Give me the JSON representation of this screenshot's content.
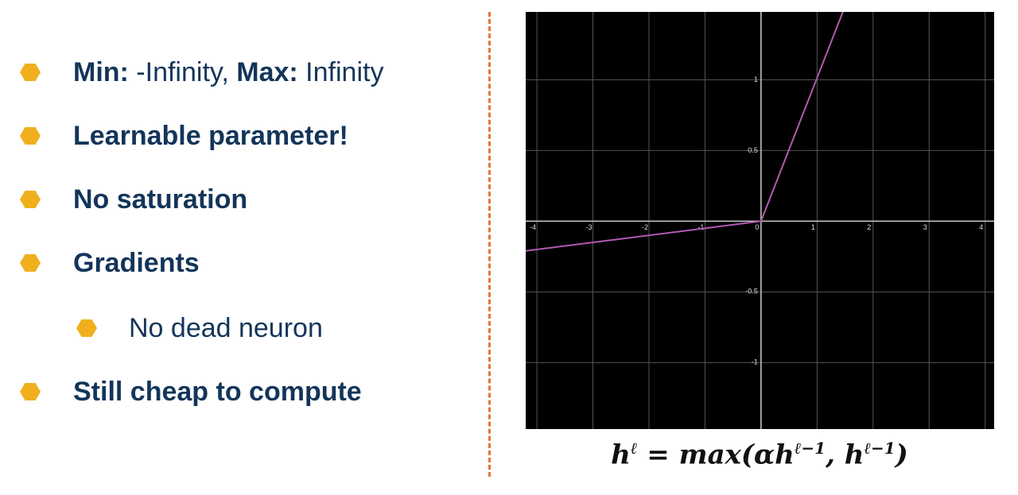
{
  "bullets": [
    {
      "level": 1,
      "runs": [
        {
          "text": "Min:",
          "bold": true
        },
        {
          "text": " -Infinity, ",
          "bold": false
        },
        {
          "text": "Max:",
          "bold": true
        },
        {
          "text": " Infinity",
          "bold": false
        }
      ]
    },
    {
      "level": 1,
      "runs": [
        {
          "text": "Learnable parameter!",
          "bold": true
        }
      ]
    },
    {
      "level": 1,
      "runs": [
        {
          "text": "No saturation",
          "bold": true
        }
      ]
    },
    {
      "level": 1,
      "runs": [
        {
          "text": "Gradients",
          "bold": true
        }
      ]
    },
    {
      "level": 2,
      "runs": [
        {
          "text": "No dead neuron",
          "bold": false
        }
      ]
    },
    {
      "level": 1,
      "runs": [
        {
          "text": "Still cheap to compute",
          "bold": true
        }
      ]
    }
  ],
  "chart_data": {
    "type": "line",
    "x": [
      -4.2,
      0,
      1.46
    ],
    "series": [
      {
        "color": "#b05ab0",
        "values": [
          -0.21,
          0,
          1.48
        ]
      }
    ],
    "xlim": [
      -4.2,
      4.16
    ],
    "ylim": [
      -1.47,
      1.48
    ],
    "xticks": [
      -4,
      -3,
      -2,
      -1,
      0,
      1,
      2,
      3,
      4
    ],
    "yticks": [
      -1,
      -0.5,
      0.5,
      1
    ],
    "grid": true
  },
  "formula": [
    {
      "text": "h"
    },
    {
      "sup": "ℓ"
    },
    {
      "text": " = max(αh"
    },
    {
      "sup": "ℓ−1"
    },
    {
      "text": ", h"
    },
    {
      "sup": "ℓ−1"
    },
    {
      "text": ")"
    }
  ]
}
